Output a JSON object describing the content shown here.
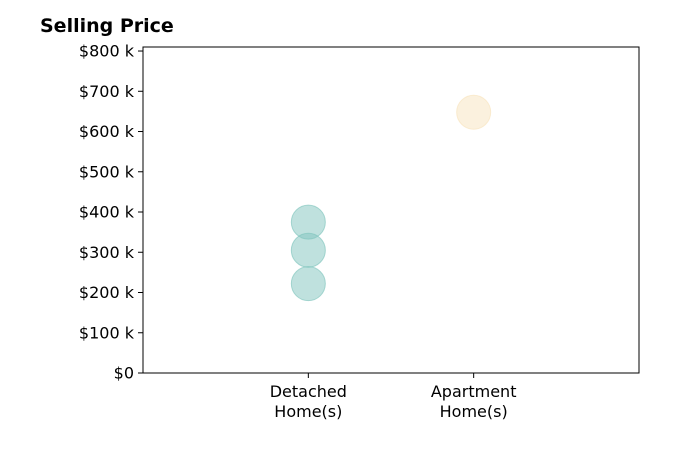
{
  "chart_data": {
    "type": "scatter",
    "title": "Selling Price",
    "xlabel": "",
    "ylabel": "",
    "categories": [
      "Detached Home(s)",
      "Apartment Home(s)"
    ],
    "category_lines": [
      [
        "Detached",
        "Home(s)"
      ],
      [
        "Apartment",
        "Home(s)"
      ]
    ],
    "x_range": [
      -1,
      2
    ],
    "ylim": [
      0,
      810000
    ],
    "yticks": [
      0,
      100000,
      200000,
      300000,
      400000,
      500000,
      600000,
      700000,
      800000
    ],
    "ytick_labels": [
      "$0",
      "$100 k",
      "$200 k",
      "$300 k",
      "$400 k",
      "$500 k",
      "$600 k",
      "$700 k",
      "$800 k"
    ],
    "grid": false,
    "points": [
      {
        "category": "Detached Home(s)",
        "value": 375000
      },
      {
        "category": "Detached Home(s)",
        "value": 305000
      },
      {
        "category": "Detached Home(s)",
        "value": 222000
      },
      {
        "category": "Apartment Home(s)",
        "value": 648000
      }
    ],
    "colors": {
      "Detached Home(s)": "#7fc4bd",
      "Apartment Home(s)": "#f8e3bd"
    }
  }
}
